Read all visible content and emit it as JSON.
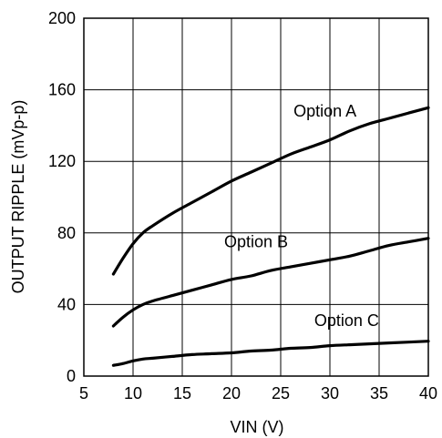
{
  "chart_data": {
    "type": "line",
    "title": "",
    "xlabel": "VIN (V)",
    "ylabel": "OUTPUT RIPPLE (mVp-p)",
    "xlim": [
      5,
      40
    ],
    "ylim": [
      0,
      200
    ],
    "x_ticks": [
      5,
      10,
      15,
      20,
      25,
      30,
      35,
      40
    ],
    "y_ticks": [
      0,
      40,
      80,
      120,
      160,
      200
    ],
    "grid": true,
    "legend": "none",
    "line_color": "#000000",
    "series": [
      {
        "name": "Option A",
        "x": [
          8,
          9,
          10,
          11,
          12,
          14,
          16,
          18,
          20,
          22,
          24,
          26,
          28,
          30,
          32,
          34,
          36,
          38,
          40
        ],
        "y": [
          57,
          66,
          74,
          80,
          84,
          91,
          97,
          103,
          109,
          114,
          119,
          124,
          128,
          132,
          137,
          141,
          144,
          147,
          150
        ]
      },
      {
        "name": "Option B",
        "x": [
          8,
          9,
          10,
          11,
          12,
          14,
          16,
          18,
          20,
          22,
          24,
          26,
          28,
          30,
          32,
          34,
          36,
          38,
          40
        ],
        "y": [
          28,
          33,
          37,
          40,
          42,
          45,
          48,
          51,
          54,
          56,
          59,
          61,
          63,
          65,
          67,
          70,
          73,
          75,
          77
        ]
      },
      {
        "name": "Option C",
        "x": [
          8,
          9,
          10,
          11,
          12,
          14,
          16,
          18,
          20,
          22,
          24,
          26,
          28,
          30,
          32,
          34,
          36,
          38,
          40
        ],
        "y": [
          6,
          7,
          8.5,
          9.5,
          10,
          11,
          12,
          12.5,
          13,
          14,
          14.5,
          15.5,
          16,
          17,
          17.5,
          18,
          18.5,
          19,
          19.5
        ]
      }
    ],
    "annotations": [
      {
        "text": "Option A",
        "x": 29.5,
        "y": 145
      },
      {
        "text": "Option B",
        "x": 22.5,
        "y": 72
      },
      {
        "text": "Option C",
        "x": 31.7,
        "y": 28
      }
    ]
  }
}
